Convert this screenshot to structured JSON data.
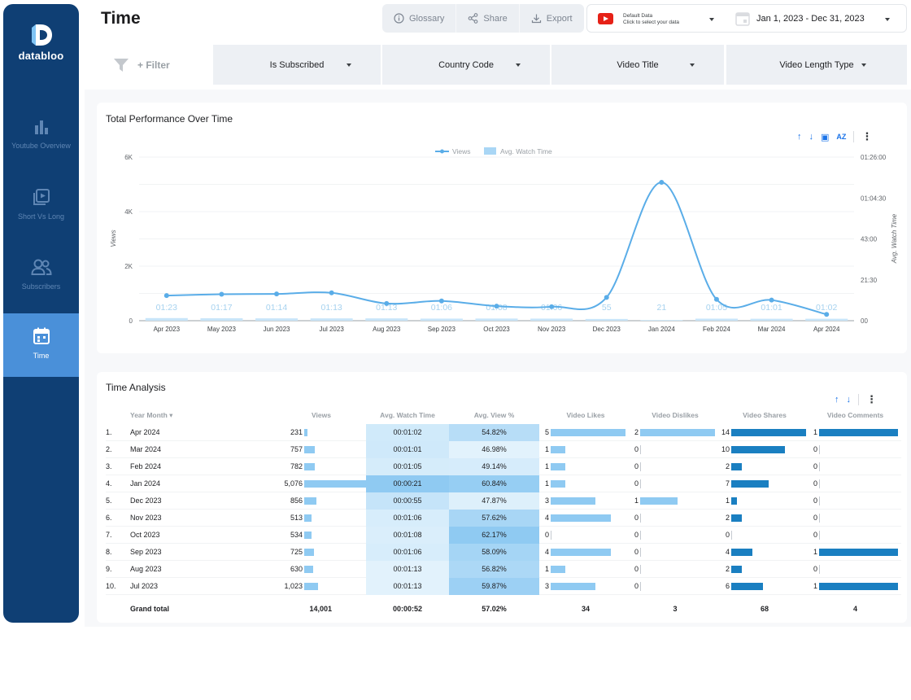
{
  "app": {
    "logo_text": "databloo"
  },
  "sidebar": {
    "items": [
      {
        "label": "Youtube Overview",
        "icon": "bar-chart-icon",
        "active": false
      },
      {
        "label": "Short Vs Long",
        "icon": "video-library-icon",
        "active": false
      },
      {
        "label": "Subscribers",
        "icon": "people-icon",
        "active": false
      },
      {
        "label": "Time",
        "icon": "calendar-icon",
        "active": true
      }
    ]
  },
  "header": {
    "title": "Time",
    "glossary_label": "Glossary",
    "share_label": "Share",
    "export_label": "Export",
    "data_source_line1": "Default Data",
    "data_source_line2": "Click to select your data",
    "date_range": "Jan 1, 2023 - Dec 31, 2023"
  },
  "filters": {
    "add_label": "+ Filter",
    "dropdowns": [
      "Is Subscribed",
      "Country Code",
      "Video Title",
      "Video Length Type"
    ]
  },
  "performance_card": {
    "title": "Total Performance Over Time",
    "legend_views": "Views",
    "legend_watch": "Avg. Watch Time",
    "left_axis_label": "Views",
    "right_axis_label": "Avg. Watch Time",
    "left_ticks": [
      "6K",
      "4K",
      "2K",
      "0"
    ],
    "right_ticks": [
      "01:26:00",
      "01:04:30",
      "43:00",
      "21:30",
      "00"
    ]
  },
  "chart_data": {
    "type": "line",
    "title": "Total Performance Over Time",
    "x": [
      "Apr 2023",
      "May 2023",
      "Jun 2023",
      "Jul 2023",
      "Aug 2023",
      "Sep 2023",
      "Oct 2023",
      "Nov 2023",
      "Dec 2023",
      "Jan 2024",
      "Feb 2024",
      "Mar 2024",
      "Apr 2024"
    ],
    "series": [
      {
        "name": "Views",
        "axis": "left",
        "values": [
          922,
          970,
          981,
          1023,
          630,
          725,
          534,
          513,
          856,
          5076,
          782,
          757,
          231
        ]
      },
      {
        "name": "Avg. Watch Time",
        "axis": "right",
        "style": "bar",
        "unit": "mm:ss",
        "values": [
          83,
          77,
          74,
          73,
          73,
          66,
          68,
          66,
          55,
          21,
          65,
          61,
          62
        ]
      }
    ],
    "bar_labels": [
      "01:23",
      "01:17",
      "01:14",
      "01:13",
      "01:13",
      "01:06",
      "01:08",
      "01:06",
      "55",
      "21",
      "01:05",
      "01:01",
      "01:02"
    ],
    "left_ylim": [
      0,
      6000
    ],
    "right_ylim": [
      0,
      5160
    ],
    "ylabel": "Views",
    "y2label": "Avg. Watch Time",
    "legend_position": "top-center",
    "grid": true
  },
  "analysis_card": {
    "title": "Time Analysis",
    "columns": [
      "Year Month",
      "Views",
      "Avg. Watch Time",
      "Avg. View %",
      "Video Likes",
      "Video Dislikes",
      "Video Shares",
      "Video Comments"
    ],
    "rows": [
      {
        "idx": "1.",
        "month": "Apr 2024",
        "views": "231",
        "v": 231,
        "watch": "00:01:02",
        "w": 62,
        "pct": "54.82%",
        "p": 54.82,
        "likes": "5",
        "l": 5,
        "dislikes": "2",
        "d": 2,
        "shares": "14",
        "s": 14,
        "comments": "1",
        "c": 1
      },
      {
        "idx": "2.",
        "month": "Mar 2024",
        "views": "757",
        "v": 757,
        "watch": "00:01:01",
        "w": 61,
        "pct": "46.98%",
        "p": 46.98,
        "likes": "1",
        "l": 1,
        "dislikes": "0",
        "d": 0,
        "shares": "10",
        "s": 10,
        "comments": "0",
        "c": 0
      },
      {
        "idx": "3.",
        "month": "Feb 2024",
        "views": "782",
        "v": 782,
        "watch": "00:01:05",
        "w": 65,
        "pct": "49.14%",
        "p": 49.14,
        "likes": "1",
        "l": 1,
        "dislikes": "0",
        "d": 0,
        "shares": "2",
        "s": 2,
        "comments": "0",
        "c": 0
      },
      {
        "idx": "4.",
        "month": "Jan 2024",
        "views": "5,076",
        "v": 5076,
        "watch": "00:00:21",
        "w": 21,
        "pct": "60.84%",
        "p": 60.84,
        "likes": "1",
        "l": 1,
        "dislikes": "0",
        "d": 0,
        "shares": "7",
        "s": 7,
        "comments": "0",
        "c": 0
      },
      {
        "idx": "5.",
        "month": "Dec 2023",
        "views": "856",
        "v": 856,
        "watch": "00:00:55",
        "w": 55,
        "pct": "47.87%",
        "p": 47.87,
        "likes": "3",
        "l": 3,
        "dislikes": "1",
        "d": 1,
        "shares": "1",
        "s": 1,
        "comments": "0",
        "c": 0
      },
      {
        "idx": "6.",
        "month": "Nov 2023",
        "views": "513",
        "v": 513,
        "watch": "00:01:06",
        "w": 66,
        "pct": "57.62%",
        "p": 57.62,
        "likes": "4",
        "l": 4,
        "dislikes": "0",
        "d": 0,
        "shares": "2",
        "s": 2,
        "comments": "0",
        "c": 0
      },
      {
        "idx": "7.",
        "month": "Oct 2023",
        "views": "534",
        "v": 534,
        "watch": "00:01:08",
        "w": 68,
        "pct": "62.17%",
        "p": 62.17,
        "likes": "0",
        "l": 0,
        "dislikes": "0",
        "d": 0,
        "shares": "0",
        "s": 0,
        "comments": "0",
        "c": 0
      },
      {
        "idx": "8.",
        "month": "Sep 2023",
        "views": "725",
        "v": 725,
        "watch": "00:01:06",
        "w": 66,
        "pct": "58.09%",
        "p": 58.09,
        "likes": "4",
        "l": 4,
        "dislikes": "0",
        "d": 0,
        "shares": "4",
        "s": 4,
        "comments": "1",
        "c": 1
      },
      {
        "idx": "9.",
        "month": "Aug 2023",
        "views": "630",
        "v": 630,
        "watch": "00:01:13",
        "w": 73,
        "pct": "56.82%",
        "p": 56.82,
        "likes": "1",
        "l": 1,
        "dislikes": "0",
        "d": 0,
        "shares": "2",
        "s": 2,
        "comments": "0",
        "c": 0
      },
      {
        "idx": "10.",
        "month": "Jul 2023",
        "views": "1,023",
        "v": 1023,
        "watch": "00:01:13",
        "w": 73,
        "pct": "59.87%",
        "p": 59.87,
        "likes": "3",
        "l": 3,
        "dislikes": "0",
        "d": 0,
        "shares": "6",
        "s": 6,
        "comments": "1",
        "c": 1
      }
    ],
    "totals": {
      "label": "Grand total",
      "views": "14,001",
      "watch": "00:00:52",
      "pct": "57.02%",
      "likes": "34",
      "dislikes": "3",
      "shares": "68",
      "comments": "4"
    }
  },
  "colors": {
    "sidebar": "#0f3f74",
    "active_nav": "#4a90d9",
    "line": "#5aade8",
    "bar_light": "#8fcaf2",
    "bar_dark": "#1a7fc1",
    "accent": "#1a73e8"
  }
}
